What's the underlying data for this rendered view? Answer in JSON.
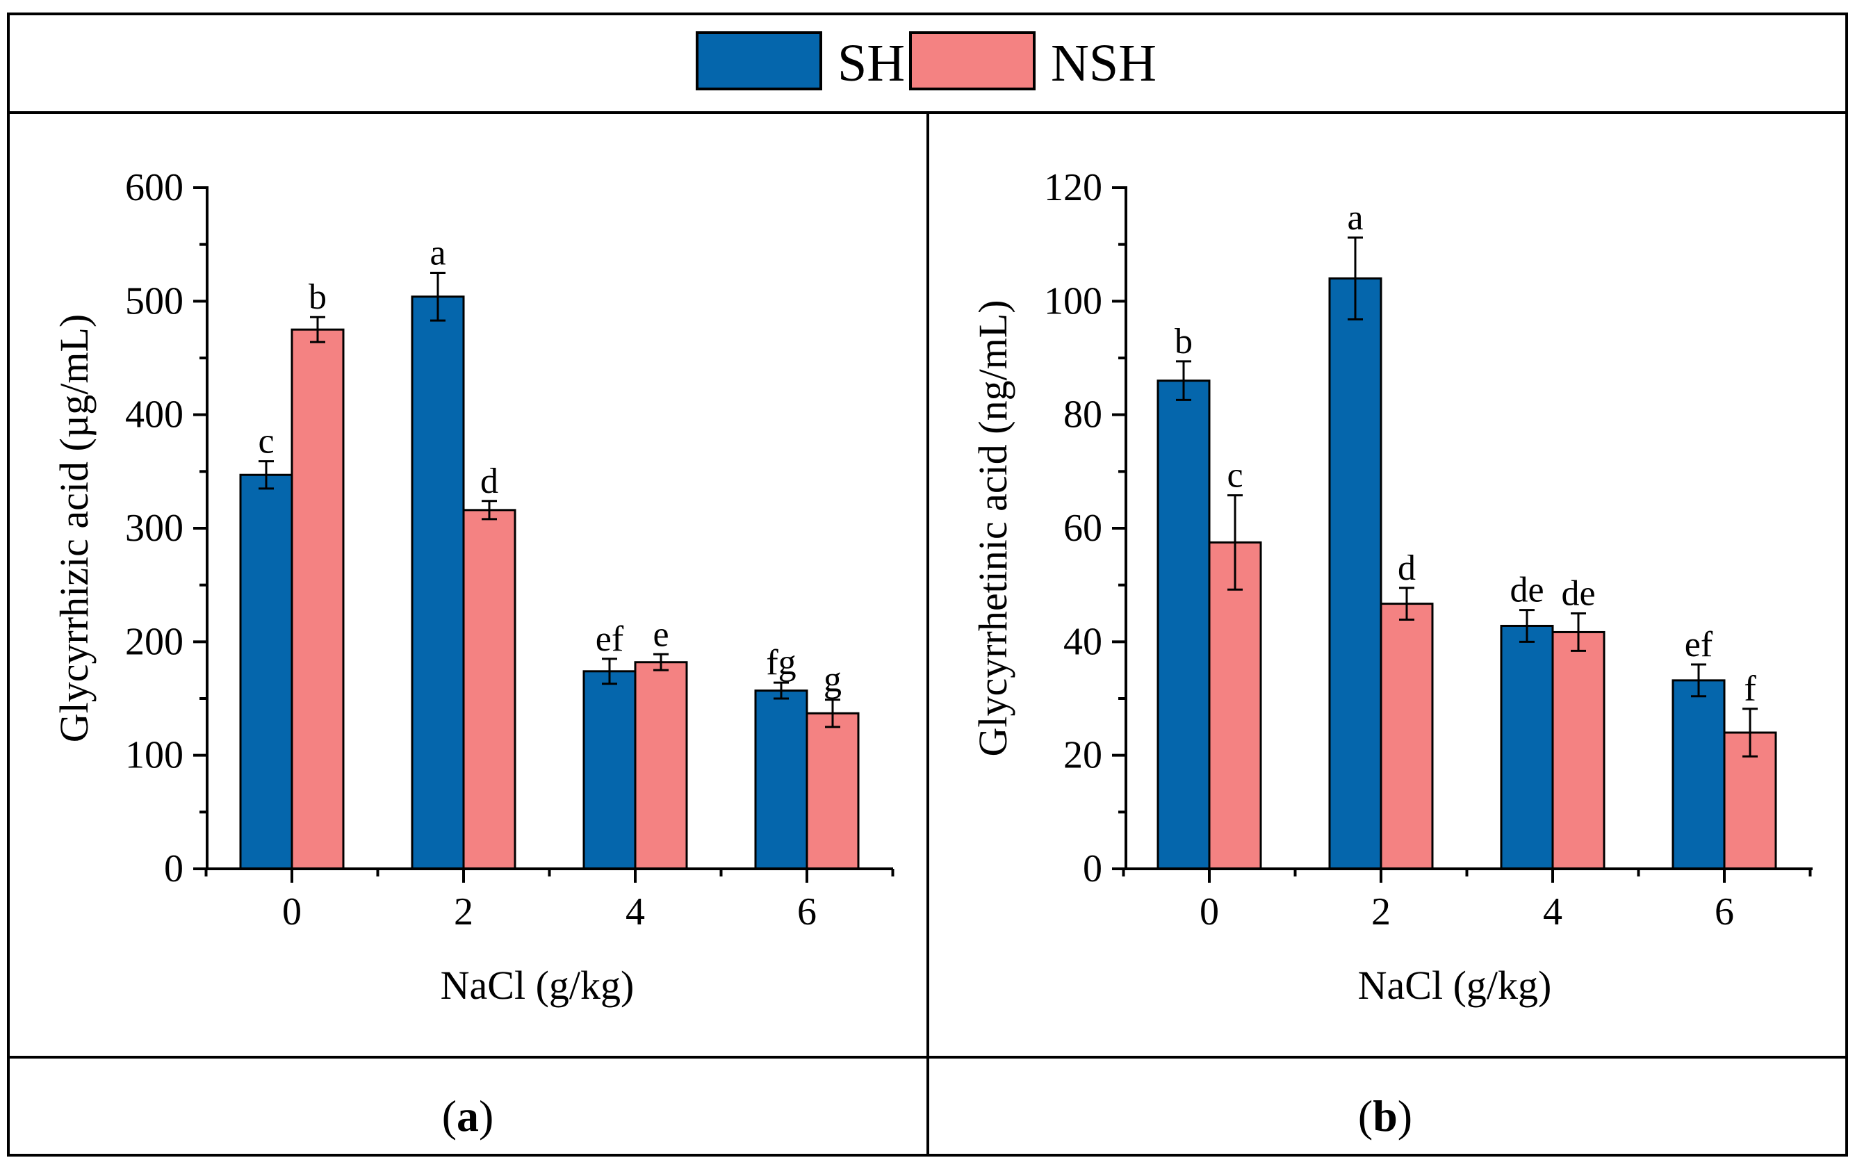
{
  "legend": {
    "items": [
      {
        "label": "SH",
        "color": "#0566ac"
      },
      {
        "label": "NSH",
        "color": "#f48282"
      }
    ]
  },
  "colors": {
    "sh": "#0566ac",
    "nsh": "#f48282",
    "axis": "#000000",
    "border": "#000000"
  },
  "chart_data": [
    {
      "type": "bar",
      "panel_label": "a",
      "categories": [
        "0",
        "2",
        "4",
        "6"
      ],
      "xlabel": "NaCl (g/kg)",
      "ylabel": "Glycyrrhizic acid (µg/mL)",
      "ylim": [
        0,
        600
      ],
      "yticks": [
        "0",
        "100",
        "200",
        "300",
        "400",
        "500",
        "600"
      ],
      "grid": false,
      "series": [
        {
          "name": "SH",
          "values": [
            347,
            504,
            174,
            157
          ],
          "errors": [
            12,
            21,
            11,
            7
          ],
          "letters": [
            "c",
            "a",
            "ef",
            "fg"
          ]
        },
        {
          "name": "NSH",
          "values": [
            475,
            316,
            182,
            137
          ],
          "errors": [
            11,
            8,
            7,
            12
          ],
          "letters": [
            "b",
            "d",
            "e",
            "g"
          ]
        }
      ]
    },
    {
      "type": "bar",
      "panel_label": "b",
      "categories": [
        "0",
        "2",
        "4",
        "6"
      ],
      "xlabel": "NaCl (g/kg)",
      "ylabel": "Glycyrrhetinic acid (ng/mL)",
      "ylim": [
        0,
        120
      ],
      "yticks": [
        "0",
        "20",
        "40",
        "60",
        "80",
        "100",
        "120"
      ],
      "grid": false,
      "series": [
        {
          "name": "SH",
          "values": [
            86,
            104,
            42.8,
            33.2
          ],
          "errors": [
            3.4,
            7.2,
            2.8,
            2.8
          ],
          "letters": [
            "b",
            "a",
            "de",
            "ef"
          ]
        },
        {
          "name": "NSH",
          "values": [
            57.5,
            46.7,
            41.7,
            24
          ],
          "errors": [
            8.3,
            2.8,
            3.3,
            4.2
          ],
          "letters": [
            "c",
            "d",
            "de",
            "f"
          ]
        }
      ]
    }
  ]
}
